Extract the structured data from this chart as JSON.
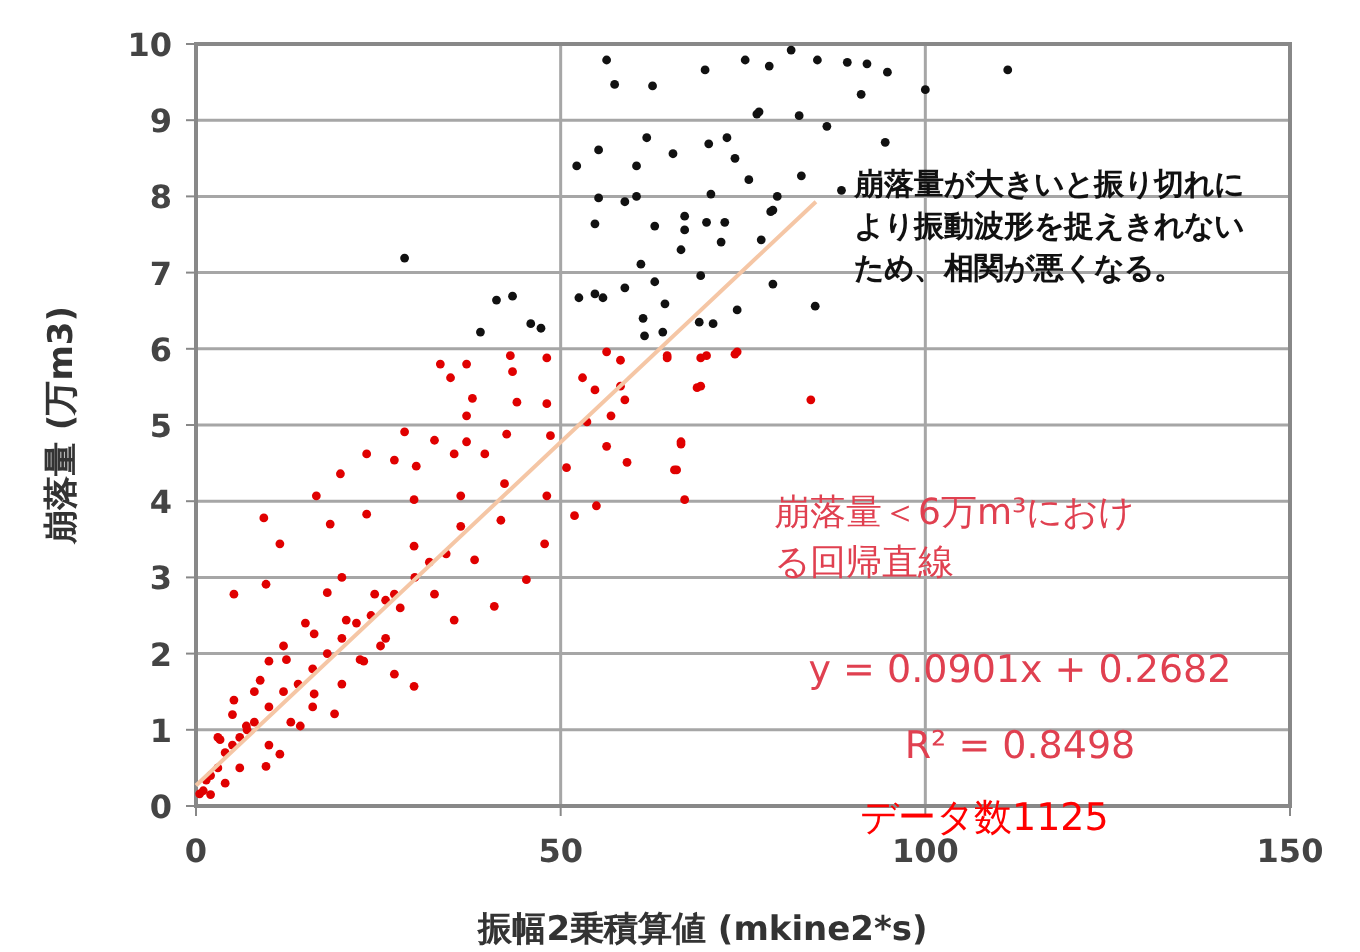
{
  "chart_data": {
    "type": "scatter",
    "xlabel": "振幅2乗積算値 (mkine2*s)",
    "ylabel": "崩落量 (万m3)",
    "xlim": [
      0,
      150
    ],
    "ylim": [
      0,
      10
    ],
    "xticks": [
      0,
      50,
      100,
      150
    ],
    "yticks": [
      0,
      1,
      2,
      3,
      4,
      5,
      6,
      7,
      8,
      9,
      10
    ],
    "grid": true,
    "marker": "circle",
    "series": [
      {
        "color": "#e00000",
        "x": [
          84.3,
          69.2,
          73.9,
          70.0,
          64.6,
          66.5,
          65.6,
          33.5,
          37.1,
          34.9,
          43.1,
          48.1,
          56.3,
          58.2,
          64.6,
          69.2,
          74.2,
          43.4,
          37.9,
          44.0,
          48.1,
          53.0,
          54.7,
          58.2,
          58.8,
          68.7,
          53.6,
          56.9,
          37.1,
          28.6,
          32.7,
          37.1,
          42.6,
          48.6,
          56.3,
          66.5,
          23.4,
          27.2,
          30.2,
          35.4,
          39.6,
          50.8,
          59.1,
          65.9,
          19.8,
          9.3,
          16.5,
          11.5,
          5.2,
          9.6,
          18.4,
          23.4,
          29.9,
          36.3,
          42.3,
          48.1,
          51.9,
          54.9,
          67.0,
          47.8,
          45.3,
          40.9,
          35.4,
          29.9,
          27.2,
          25.3,
          34.3,
          38.2,
          29.9,
          24.5,
          20.6,
          16.2,
          12.4,
          8.8,
          5.2,
          3.3,
          1.4,
          0.5,
          11.5,
          9.6,
          19.0,
          22.5,
          16.2,
          6.9,
          14.3,
          32.7,
          36.3,
          41.8,
          27.2,
          2,
          3,
          4,
          5,
          6,
          7,
          8,
          10,
          12,
          14,
          16,
          18,
          20,
          22,
          24,
          26,
          1,
          2,
          4,
          6,
          3,
          5,
          8,
          10,
          12,
          15,
          18,
          20,
          10,
          13,
          16,
          20,
          23,
          26,
          28,
          30,
          32
        ],
        "values": [
          5.33,
          5.51,
          5.93,
          5.91,
          5.91,
          4.75,
          4.41,
          5.8,
          5.8,
          5.62,
          5.91,
          5.88,
          5.96,
          5.85,
          5.88,
          5.88,
          5.96,
          5.7,
          5.35,
          5.3,
          5.28,
          5.62,
          5.46,
          5.51,
          5.33,
          5.49,
          5.04,
          5.12,
          5.12,
          4.91,
          4.8,
          4.78,
          4.88,
          4.86,
          4.72,
          4.78,
          4.62,
          4.54,
          4.46,
          4.62,
          4.62,
          4.44,
          4.51,
          4.41,
          4.36,
          3.78,
          4.07,
          3.44,
          2.78,
          2.91,
          3.7,
          3.83,
          4.02,
          4.07,
          4.23,
          4.07,
          3.81,
          3.94,
          4.02,
          3.44,
          2.97,
          2.62,
          2.44,
          1.57,
          1.73,
          2.1,
          3.31,
          3.23,
          3.41,
          2.78,
          2.44,
          2.26,
          1.92,
          1.65,
          1.39,
          0.87,
          0.34,
          0.16,
          0.68,
          0.52,
          1.21,
          1.92,
          1.47,
          1.05,
          1.05,
          2.78,
          3.67,
          3.75,
          2.78,
          0.4,
          0.5,
          0.7,
          0.8,
          0.9,
          1.0,
          1.1,
          1.3,
          1.5,
          1.6,
          1.8,
          2.0,
          2.2,
          2.4,
          2.5,
          2.7,
          0.2,
          0.15,
          0.3,
          0.5,
          0.9,
          1.2,
          1.5,
          1.9,
          2.1,
          2.4,
          2.8,
          3.0,
          0.8,
          1.1,
          1.3,
          1.6,
          1.9,
          2.2,
          2.6,
          3.0,
          3.2
        ]
      },
      {
        "color": "#111111",
        "x": [
          56.3,
          57.4,
          62.6,
          69.8,
          75.3,
          78.6,
          76.9,
          61.8,
          55.2,
          52.2,
          60.4,
          65.4,
          70.3,
          72.8,
          73.9,
          75.8,
          55.2,
          58.8,
          60.4,
          70.6,
          54.7,
          62.9,
          67.0,
          67.0,
          70.0,
          72.5,
          72.0,
          66.5,
          77.5,
          79.1,
          28.6,
          61.0,
          62.9,
          69.2,
          79.1,
          58.8,
          52.5,
          54.7,
          55.8,
          41.2,
          43.4,
          64.3,
          74.2,
          39.0,
          45.9,
          47.3,
          61.3,
          61.5,
          64.0,
          69.0,
          70.9,
          81.6,
          85.2,
          89.3,
          92.0,
          94.8,
          91.2,
          100.0,
          111.3,
          77.2,
          82.7,
          86.5,
          94.5,
          83.0,
          79.7,
          78.8,
          88.5,
          84.9
        ],
        "values": [
          9.79,
          9.47,
          9.45,
          9.66,
          9.79,
          9.71,
          9.08,
          8.77,
          8.61,
          8.4,
          8.4,
          8.56,
          8.69,
          8.77,
          8.5,
          8.22,
          7.98,
          7.93,
          8.0,
          8.03,
          7.64,
          7.61,
          7.74,
          7.56,
          7.66,
          7.66,
          7.4,
          7.3,
          7.43,
          7.82,
          7.19,
          7.11,
          6.88,
          6.96,
          6.85,
          6.8,
          6.67,
          6.72,
          6.67,
          6.64,
          6.69,
          6.59,
          6.51,
          6.22,
          6.33,
          6.27,
          6.4,
          6.17,
          6.22,
          6.35,
          6.33,
          9.92,
          9.79,
          9.76,
          9.74,
          9.63,
          9.34,
          9.4,
          9.66,
          9.11,
          9.06,
          8.92,
          8.71,
          8.27,
          8.0,
          7.8,
          8.08,
          6.56
        ]
      },
      {
        "type": "line",
        "marker": "none",
        "color": "#f5c6a5",
        "x": [
          0,
          85
        ],
        "values": [
          0.27,
          7.93
        ]
      }
    ],
    "annotations": [
      "崩落量が大きいと振り切れにより振動波形を捉えきれないため、相関が悪くなる。",
      "崩落量＜6万m³における回帰直線",
      "y = 0.0901x + 0.2682",
      "R² = 0.8498",
      "データ数1125"
    ]
  }
}
